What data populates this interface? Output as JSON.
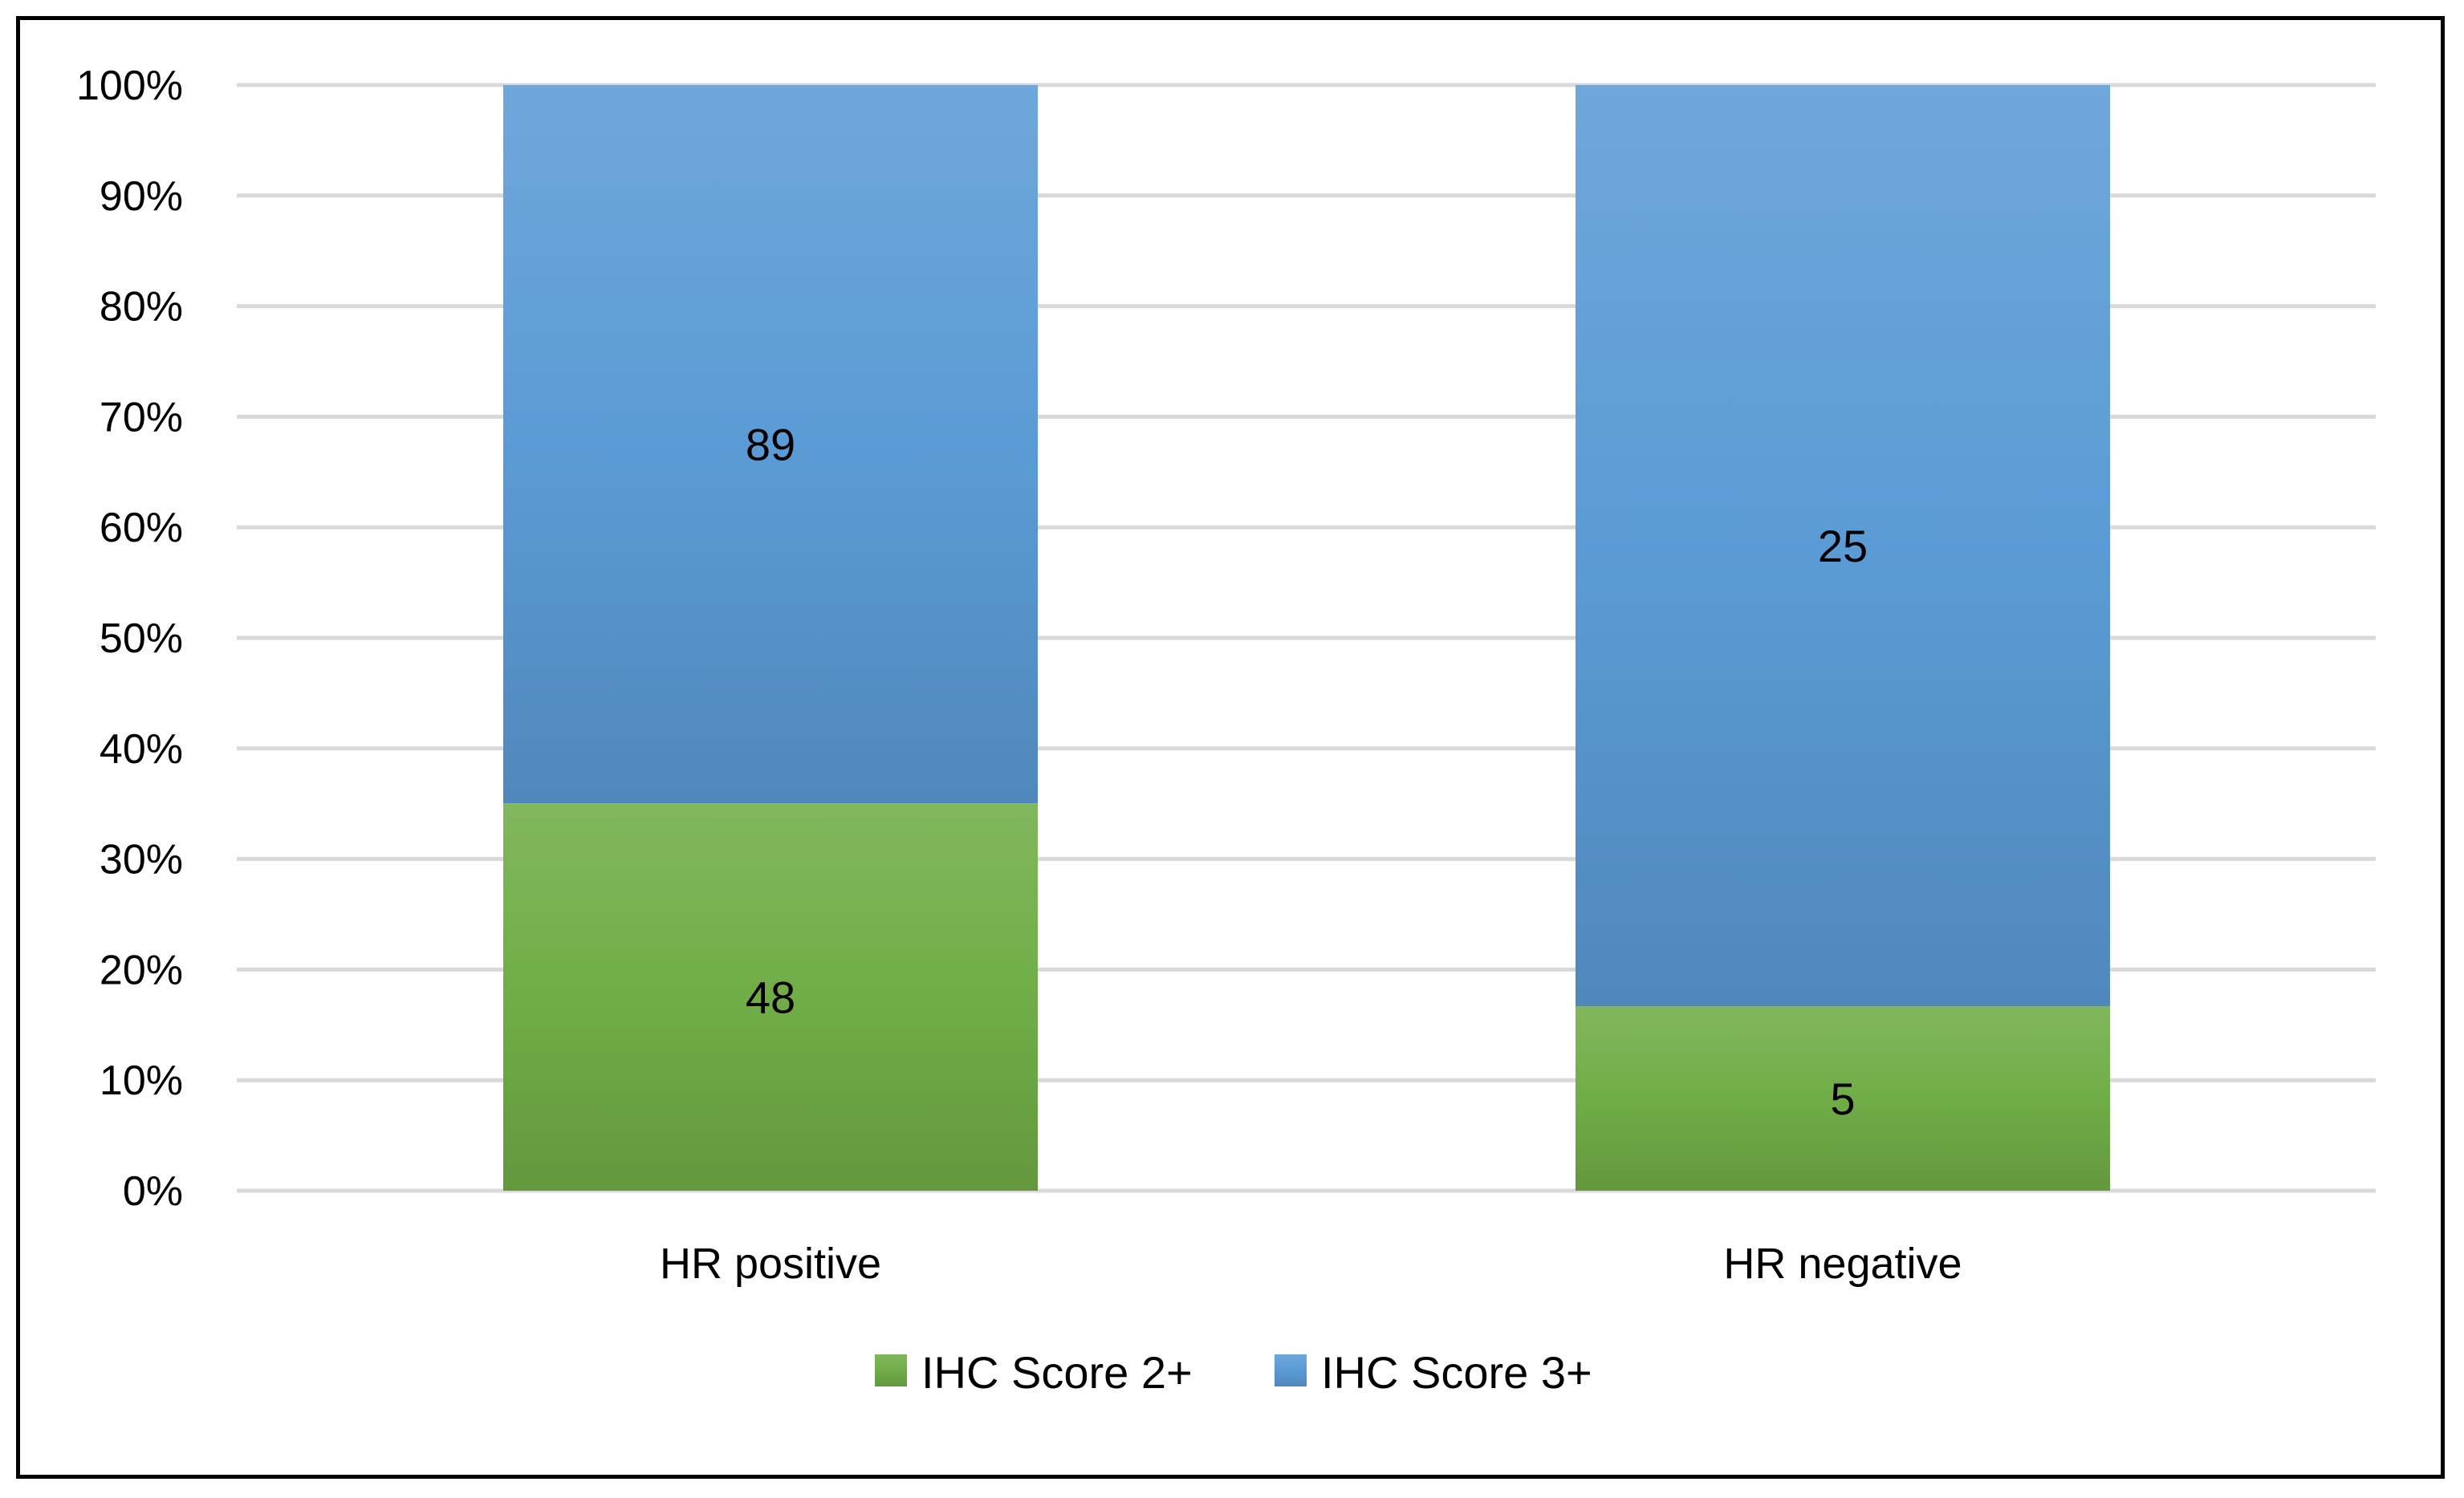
{
  "chart_data": {
    "type": "bar",
    "stacked": "percent",
    "categories": [
      "HR positive",
      "HR negative"
    ],
    "series": [
      {
        "name": "IHC Score 2+",
        "values": [
          48,
          5
        ],
        "color": "#70ad47"
      },
      {
        "name": "IHC Score 3+",
        "values": [
          89,
          25
        ],
        "color": "#5b9bd5"
      }
    ],
    "y_ticks": [
      "0%",
      "10%",
      "20%",
      "30%",
      "40%",
      "50%",
      "60%",
      "70%",
      "80%",
      "90%",
      "100%"
    ],
    "ylim": [
      0,
      100
    ],
    "grid": true,
    "legend_position": "bottom",
    "title": "",
    "xlabel": "",
    "ylabel": ""
  }
}
